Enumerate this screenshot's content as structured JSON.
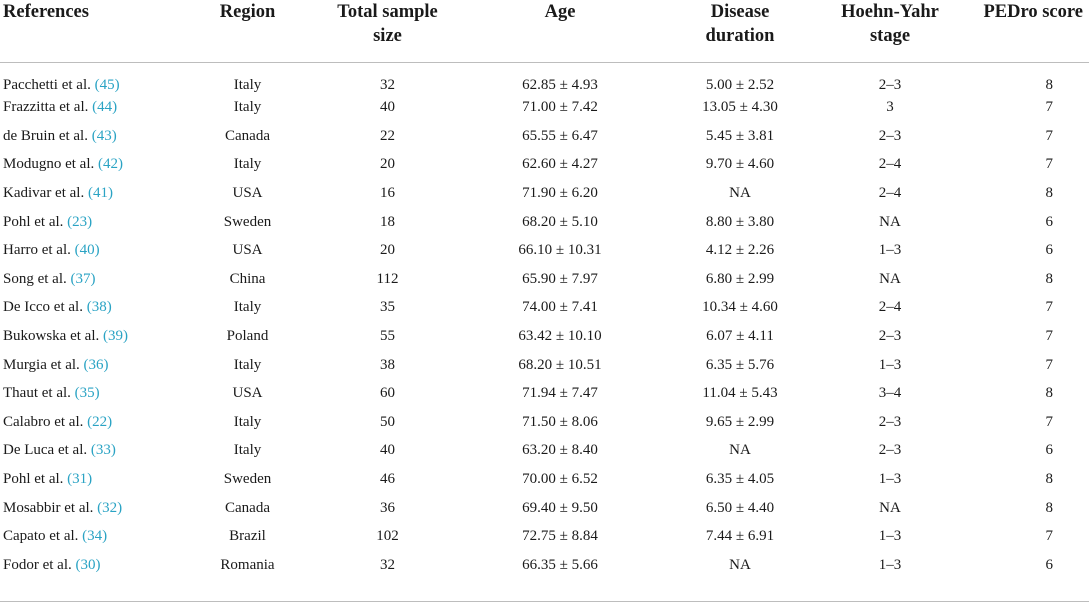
{
  "table": {
    "headers": {
      "references": "References",
      "region": "Region",
      "sample_size": "Total sample size",
      "age": "Age",
      "disease_duration": "Disease duration",
      "hoehn_yahr": "Hoehn-Yahr stage",
      "pedro": "PEDro score"
    },
    "rows": [
      {
        "author": "Pacchetti et al.",
        "ref": "(45)",
        "region": "Italy",
        "n": "32",
        "age": "62.85 ± 4.93",
        "duration": "5.00 ± 2.52",
        "stage": "2–3",
        "pedro": "8"
      },
      {
        "author": "Frazzitta et al.",
        "ref": "(44)",
        "region": "Italy",
        "n": "40",
        "age": "71.00 ± 7.42",
        "duration": "13.05 ± 4.30",
        "stage": "3",
        "pedro": "7"
      },
      {
        "author": "de Bruin et al.",
        "ref": "(43)",
        "region": "Canada",
        "n": "22",
        "age": "65.55 ± 6.47",
        "duration": "5.45 ± 3.81",
        "stage": "2–3",
        "pedro": "7"
      },
      {
        "author": "Modugno et al.",
        "ref": "(42)",
        "region": "Italy",
        "n": "20",
        "age": "62.60 ± 4.27",
        "duration": "9.70 ± 4.60",
        "stage": "2–4",
        "pedro": "7"
      },
      {
        "author": "Kadivar et al.",
        "ref": "(41)",
        "region": "USA",
        "n": "16",
        "age": "71.90 ± 6.20",
        "duration": "NA",
        "stage": "2–4",
        "pedro": "8"
      },
      {
        "author": "Pohl et al.",
        "ref": "(23)",
        "region": "Sweden",
        "n": "18",
        "age": "68.20 ± 5.10",
        "duration": "8.80 ± 3.80",
        "stage": "NA",
        "pedro": "6"
      },
      {
        "author": "Harro et al.",
        "ref": "(40)",
        "region": "USA",
        "n": "20",
        "age": "66.10 ± 10.31",
        "duration": "4.12 ± 2.26",
        "stage": "1–3",
        "pedro": "6"
      },
      {
        "author": "Song et al.",
        "ref": "(37)",
        "region": "China",
        "n": "112",
        "age": "65.90 ± 7.97",
        "duration": "6.80 ± 2.99",
        "stage": "NA",
        "pedro": "8"
      },
      {
        "author": "De Icco et al.",
        "ref": "(38)",
        "region": "Italy",
        "n": "35",
        "age": "74.00 ± 7.41",
        "duration": "10.34 ± 4.60",
        "stage": "2–4",
        "pedro": "7"
      },
      {
        "author": "Bukowska et al.",
        "ref": "(39)",
        "region": "Poland",
        "n": "55",
        "age": "63.42 ± 10.10",
        "duration": "6.07 ± 4.11",
        "stage": "2–3",
        "pedro": "7"
      },
      {
        "author": "Murgia et al.",
        "ref": "(36)",
        "region": "Italy",
        "n": "38",
        "age": "68.20 ± 10.51",
        "duration": "6.35 ± 5.76",
        "stage": "1–3",
        "pedro": "7"
      },
      {
        "author": "Thaut et al.",
        "ref": "(35)",
        "region": "USA",
        "n": "60",
        "age": "71.94 ± 7.47",
        "duration": "11.04 ± 5.43",
        "stage": "3–4",
        "pedro": "8"
      },
      {
        "author": "Calabro et al.",
        "ref": "(22)",
        "region": "Italy",
        "n": "50",
        "age": "71.50 ± 8.06",
        "duration": "9.65 ± 2.99",
        "stage": "2–3",
        "pedro": "7"
      },
      {
        "author": "De Luca et al.",
        "ref": "(33)",
        "region": "Italy",
        "n": "40",
        "age": "63.20 ± 8.40",
        "duration": "NA",
        "stage": "2–3",
        "pedro": "6"
      },
      {
        "author": "Pohl et al.",
        "ref": "(31)",
        "region": "Sweden",
        "n": "46",
        "age": "70.00 ± 6.52",
        "duration": "6.35 ± 4.05",
        "stage": "1–3",
        "pedro": "8"
      },
      {
        "author": "Mosabbir et al.",
        "ref": "(32)",
        "region": "Canada",
        "n": "36",
        "age": "69.40 ± 9.50",
        "duration": "6.50 ± 4.40",
        "stage": "NA",
        "pedro": "8"
      },
      {
        "author": "Capato et al.",
        "ref": "(34)",
        "region": "Brazil",
        "n": "102",
        "age": "72.75 ± 8.84",
        "duration": "7.44 ± 6.91",
        "stage": "1–3",
        "pedro": "7"
      },
      {
        "author": "Fodor et al.",
        "ref": "(30)",
        "region": "Romania",
        "n": "32",
        "age": "66.35 ± 5.66",
        "duration": "NA",
        "stage": "1–3",
        "pedro": "6"
      }
    ]
  },
  "colors": {
    "citation": "#2aa3c4",
    "text": "#1a1a1a",
    "rule": "#bdbdbd"
  }
}
